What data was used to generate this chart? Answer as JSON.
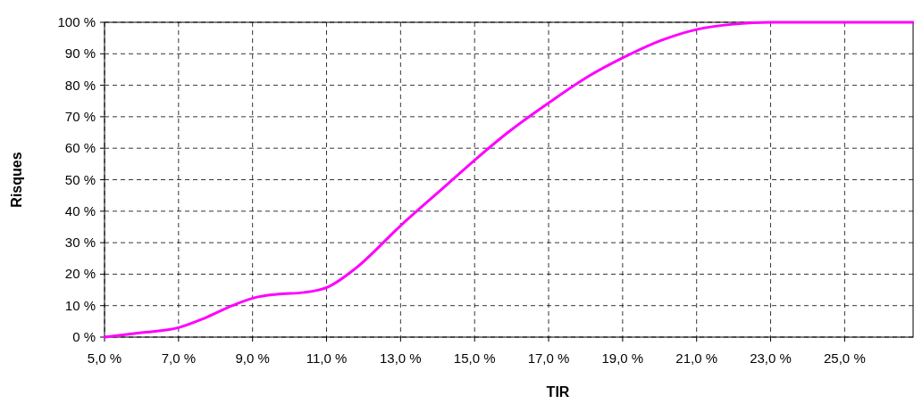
{
  "chart_data": {
    "type": "line",
    "xlabel": "TIR",
    "ylabel": "Risques",
    "x": [
      5.0,
      6.0,
      7.0,
      7.7,
      8.45,
      9.05,
      9.65,
      10.4,
      11.05,
      11.8,
      13.0,
      14.25,
      15.05,
      15.9,
      17.05,
      18.1,
      19.0,
      20.05,
      21.0,
      22.0,
      23.0,
      26.85
    ],
    "series": [
      {
        "color": "#ff00ff",
        "values": [
          0,
          1.4,
          3,
          6,
          10,
          12.5,
          13.6,
          14.2,
          16,
          22,
          35.4,
          48.4,
          56.7,
          65,
          74.8,
          83,
          88.7,
          94.3,
          97.7,
          99.4,
          100,
          100
        ]
      }
    ],
    "xlim": [
      5,
      26.85
    ],
    "xticks": [
      {
        "value": 5,
        "label": "5,0 %"
      },
      {
        "value": 7,
        "label": "7,0 %"
      },
      {
        "value": 9,
        "label": "9,0 %"
      },
      {
        "value": 11,
        "label": "11,0 %"
      },
      {
        "value": 13,
        "label": "13,0 %"
      },
      {
        "value": 15,
        "label": "15,0 %"
      },
      {
        "value": 17,
        "label": "17,0 %"
      },
      {
        "value": 19,
        "label": "19,0 %"
      },
      {
        "value": 21,
        "label": "21,0 %"
      },
      {
        "value": 23,
        "label": "23,0 %"
      },
      {
        "value": 25,
        "label": "25,0 %"
      }
    ],
    "ylim": [
      0,
      100
    ],
    "yticks": [
      {
        "value": 0,
        "label": "0 %"
      },
      {
        "value": 10,
        "label": "10 %"
      },
      {
        "value": 20,
        "label": "20 %"
      },
      {
        "value": 30,
        "label": "30 %"
      },
      {
        "value": 40,
        "label": "40 %"
      },
      {
        "value": 50,
        "label": "50 %"
      },
      {
        "value": 60,
        "label": "60 %"
      },
      {
        "value": 70,
        "label": "70 %"
      },
      {
        "value": 80,
        "label": "80 %"
      },
      {
        "value": 90,
        "label": "90 %"
      },
      {
        "value": 100,
        "label": "100 %"
      }
    ],
    "grid": true,
    "marker": "none",
    "line_style": "solid"
  }
}
